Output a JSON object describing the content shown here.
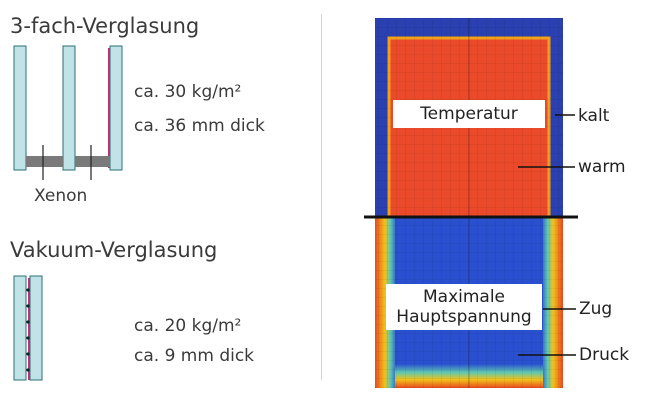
{
  "left": {
    "triple": {
      "title": "3-fach-Verglasung",
      "weight": "ca. 30 kg/m²",
      "thickness": "ca. 36 mm dick",
      "gas_label": "Xenon"
    },
    "vacuum": {
      "title": "Vakuum-Verglasung",
      "weight": "ca. 20 kg/m²",
      "thickness": "ca. 9 mm dick"
    }
  },
  "right": {
    "top_panel": {
      "box_label": "Temperatur",
      "callout_top": "kalt",
      "callout_bottom": "warm"
    },
    "bottom_panel": {
      "box_label_line1": "Maximale",
      "box_label_line2": "Hauptspannung",
      "callout_top": "Zug",
      "callout_bottom": "Druck"
    }
  },
  "colors": {
    "glass_fill": "#bfe3e6",
    "glass_stroke": "#2e6f74",
    "coating": "#c0307a",
    "spacer": "#7a7a7a",
    "cold_blue": "#2a3fb0",
    "warm_red": "#ea4a2a",
    "divider": "#cfcfcf"
  }
}
